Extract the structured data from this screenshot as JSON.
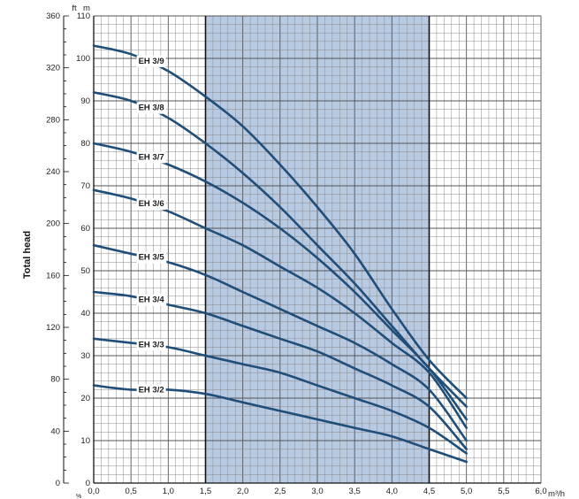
{
  "chart_data": {
    "type": "line",
    "title": "",
    "ylabel": "Total head",
    "x_unit": "m³/h",
    "y_unit_left": "ft",
    "y_unit_right": "m",
    "x_corner_label": "%",
    "xlim": [
      0,
      6
    ],
    "ylim": [
      0,
      110
    ],
    "ft_lim": [
      0,
      360
    ],
    "x_ticks": [
      "0,0",
      "0,5",
      "1,0",
      "1,5",
      "2,0",
      "2,5",
      "3,0",
      "3,5",
      "4,0",
      "4,5",
      "5,0",
      "5,5",
      "6,0"
    ],
    "m_ticks": [
      "0",
      "10",
      "20",
      "30",
      "40",
      "50",
      "60",
      "70",
      "80",
      "90",
      "100",
      "110"
    ],
    "ft_ticks": [
      "0",
      "40",
      "80",
      "120",
      "160",
      "200",
      "240",
      "280",
      "320",
      "360"
    ],
    "highlight_range": [
      1.5,
      4.5
    ],
    "highlight_color": "#b8c9e2",
    "curve_color": "#1f4e79",
    "grid": true,
    "series": [
      {
        "name": "EH 3/9",
        "x": [
          0,
          0.5,
          1,
          1.5,
          2,
          2.5,
          3,
          3.5,
          4,
          4.5,
          5
        ],
        "y": [
          103,
          101,
          97,
          91,
          84,
          75,
          65,
          54,
          41,
          29,
          20
        ]
      },
      {
        "name": "EH 3/8",
        "x": [
          0,
          0.5,
          1,
          1.5,
          2,
          2.5,
          3,
          3.5,
          4,
          4.5,
          5
        ],
        "y": [
          92,
          90,
          86,
          80,
          73,
          65,
          56,
          47,
          37,
          27,
          18
        ]
      },
      {
        "name": "EH 3/7",
        "x": [
          0,
          0.5,
          1,
          1.5,
          2,
          2.5,
          3,
          3.5,
          4,
          4.5,
          5
        ],
        "y": [
          80,
          78,
          75,
          71,
          66,
          60,
          53,
          45,
          36,
          27,
          15
        ]
      },
      {
        "name": "EH 3/6",
        "x": [
          0,
          0.5,
          1,
          1.5,
          2,
          2.5,
          3,
          3.5,
          4,
          4.5,
          5
        ],
        "y": [
          69,
          67,
          64,
          60,
          56,
          51,
          46,
          40,
          33,
          26,
          13
        ]
      },
      {
        "name": "EH 3/5",
        "x": [
          0,
          0.5,
          1,
          1.5,
          2,
          2.5,
          3,
          3.5,
          4,
          4.5,
          5
        ],
        "y": [
          56,
          54,
          52,
          49,
          45,
          41,
          37,
          33,
          28,
          22,
          10
        ]
      },
      {
        "name": "EH 3/4",
        "x": [
          0,
          0.5,
          1,
          1.5,
          2,
          2.5,
          3,
          3.5,
          4,
          4.5,
          5
        ],
        "y": [
          45,
          44,
          42,
          40,
          37,
          34,
          31,
          27,
          23,
          18,
          8
        ]
      },
      {
        "name": "EH 3/3",
        "x": [
          0,
          0.5,
          1,
          1.5,
          2,
          2.5,
          3,
          3.5,
          4,
          4.5,
          5
        ],
        "y": [
          34,
          33,
          32,
          30,
          28,
          26,
          23,
          20,
          17,
          13,
          7
        ]
      },
      {
        "name": "EH 3/2",
        "x": [
          0,
          0.5,
          1,
          1.5,
          2,
          2.5,
          3,
          3.5,
          4,
          4.5,
          5
        ],
        "y": [
          23,
          22,
          22,
          21,
          19,
          17,
          15,
          13,
          11,
          8,
          5
        ]
      }
    ]
  }
}
